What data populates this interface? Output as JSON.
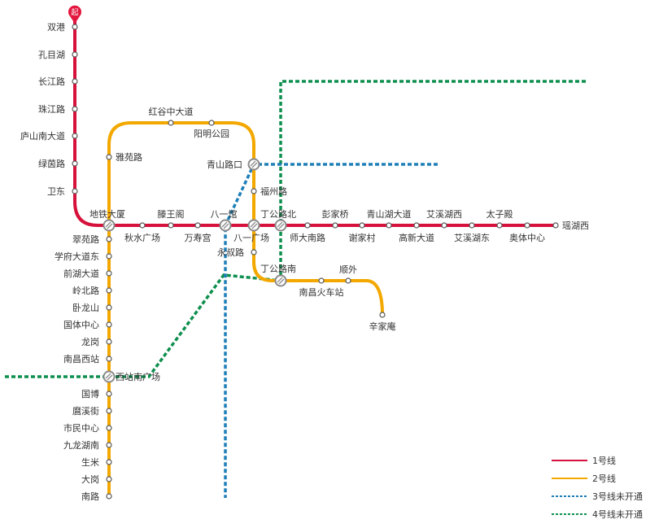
{
  "start_badge": "起",
  "lines": {
    "line1": {
      "color": "#d6123c",
      "stations": [
        "双港",
        "孔目湖",
        "长江路",
        "珠江路",
        "庐山南大道",
        "绿茵路",
        "卫东",
        "地铁大厦",
        "秋水广场",
        "滕王阁",
        "万寿宫",
        "八一馆",
        "八一广场",
        "丁公路北",
        "师大南路",
        "彭家桥",
        "谢家村",
        "青山湖大道",
        "高新大道",
        "艾溪湖西",
        "艾溪湖东",
        "太子殿",
        "奥体中心",
        "瑶湖西"
      ]
    },
    "line2": {
      "color": "#f3a800",
      "stations": [
        "辛家庵",
        "顺外",
        "南昌火车站",
        "丁公路南",
        "永叔路",
        "八一广场",
        "福州路",
        "青山路口",
        "阳明公园",
        "红谷中大道",
        "雅苑路",
        "地铁大厦",
        "翠苑路",
        "学府大道东",
        "前湖大道",
        "岭北路",
        "卧龙山",
        "国体中心",
        "龙岗",
        "南昌西站",
        "西站南广场",
        "国博",
        "麿溪街",
        "市民中心",
        "九龙湖南",
        "生米",
        "大岗",
        "南路"
      ]
    },
    "line3": {
      "color": "#1e7fb8"
    },
    "line4": {
      "color": "#0e8f4e"
    }
  },
  "legend": [
    {
      "label": "1号线",
      "color": "#d6123c",
      "dashed": false
    },
    {
      "label": "2号线",
      "color": "#f3a800",
      "dashed": false
    },
    {
      "label": "3号线未开通",
      "color": "#1e7fb8",
      "dashed": true
    },
    {
      "label": "4号线未开通",
      "color": "#0e8f4e",
      "dashed": true
    }
  ]
}
